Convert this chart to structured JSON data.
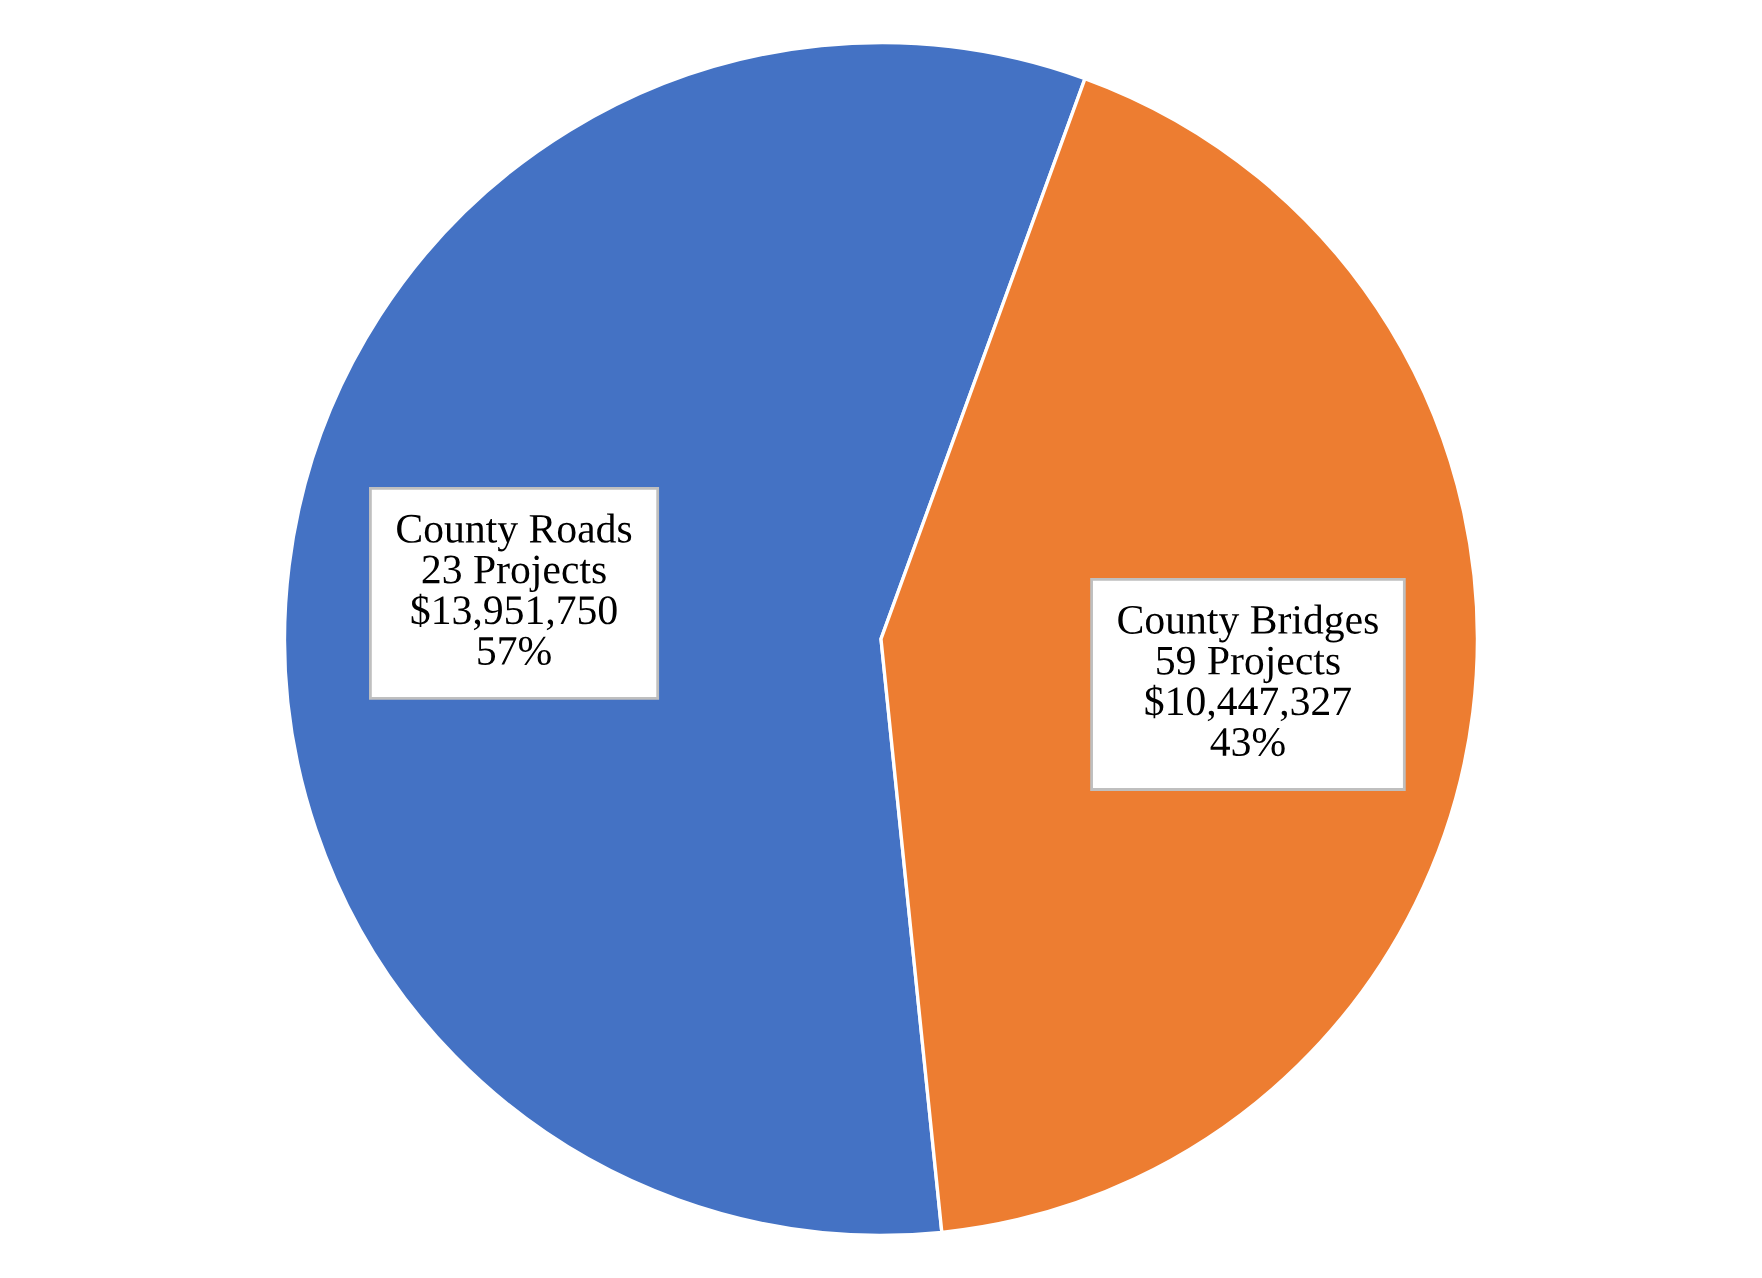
{
  "chart_data": {
    "type": "pie",
    "categories": [
      "County Roads",
      "County Bridges"
    ],
    "values": [
      13951750,
      10447327
    ],
    "colors": [
      "#4472c4",
      "#ed7d31"
    ],
    "value_labels": [
      "23 Projects\n$13,951,750\n57%",
      "59 Projects\n$10,447,327\n43%"
    ],
    "legend": false
  }
}
